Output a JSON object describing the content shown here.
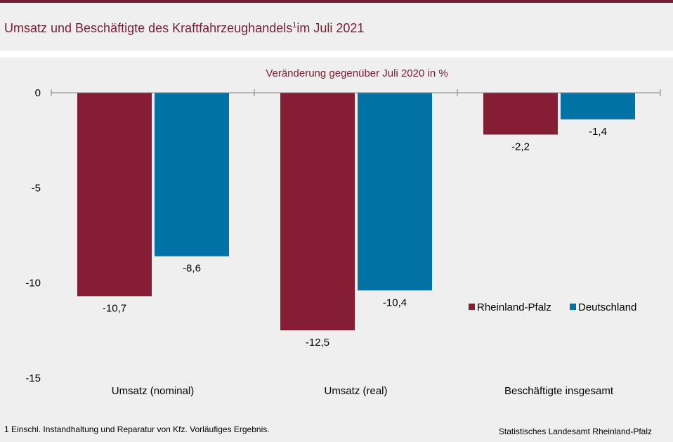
{
  "header": {
    "title": "Umsatz und Beschäftigte des Kraftfahrzeughandels",
    "title_sup": "1",
    "title_suffix": "im Juli 2021"
  },
  "footer": {
    "footnote": "1 Einschl. Instandhaltung und Reparatur von Kfz. Vorläufiges Ergebnis.",
    "source": "Statistisches Landesamt Rheinland-Pfalz"
  },
  "colors": {
    "brand": "#7b1d32",
    "series_rlp": "#851d35",
    "series_de": "#0072a3"
  },
  "chart_data": {
    "type": "bar",
    "subtitle": "Veränderung gegenüber Juli 2020 in %",
    "categories": [
      "Umsatz (nominal)",
      "Umsatz (real)",
      "Beschäftigte insgesamt"
    ],
    "series": [
      {
        "name": "Rheinland-Pfalz",
        "values": [
          -10.7,
          -12.5,
          -2.2
        ],
        "labels": [
          "-10,7",
          "-12,5",
          "-2,2"
        ]
      },
      {
        "name": "Deutschland",
        "values": [
          -8.6,
          -10.4,
          -1.4
        ],
        "labels": [
          "-8,6",
          "-10,4",
          "-1,4"
        ]
      }
    ],
    "yticks": [
      0,
      -5,
      -10,
      -15
    ],
    "ytick_labels": [
      "0",
      "-5",
      "-10",
      "-15"
    ],
    "ylim": [
      -15,
      0
    ],
    "grid": false,
    "legend_position": "right"
  }
}
